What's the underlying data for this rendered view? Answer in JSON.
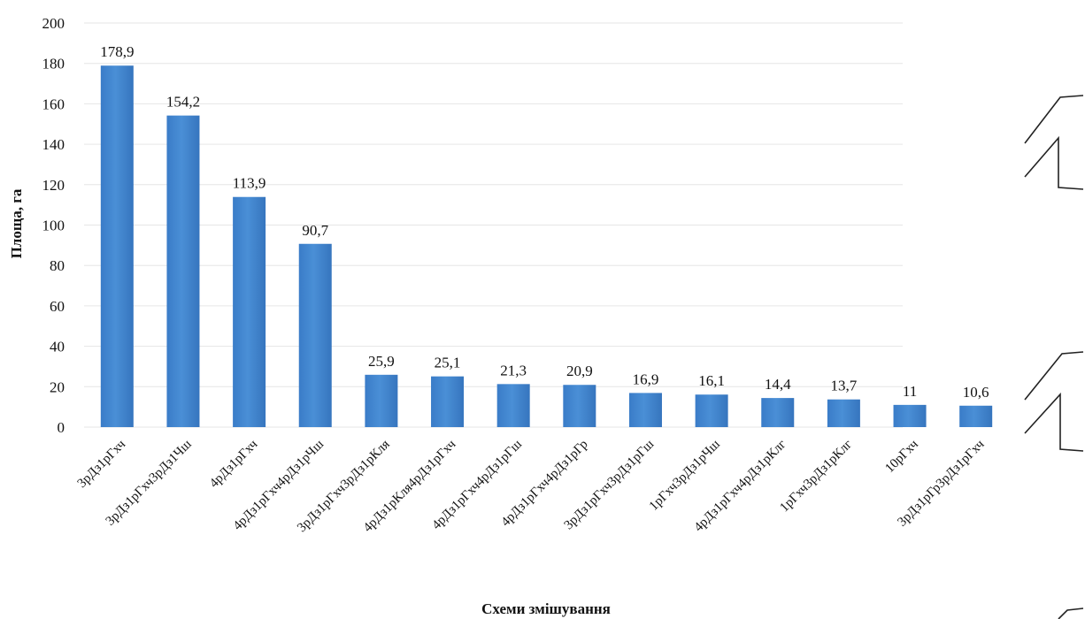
{
  "chart_data": {
    "type": "bar",
    "title": "",
    "xlabel": "Схеми змішування",
    "ylabel": "Площа, га",
    "ylim": [
      0,
      200
    ],
    "yticks": [
      0,
      20,
      40,
      60,
      80,
      100,
      120,
      140,
      160,
      180,
      200
    ],
    "grid": true,
    "legend": "none",
    "bar_color": "#4a8fd6",
    "categories": [
      "3рДз1рГхч",
      "3рДз1рГхч3рДз1Чш",
      "4рДз1рГхч",
      "4рДз1рГхч4рДз1рЧш",
      "3рДз1рГхч3рДз1рКля",
      "4рДз1рКля4рДз1рГхч",
      "4рДз1рГхч4рДз1рГш",
      "4рДз1рГхч4рДз1рГр",
      "3рДз1рГхч3рДз1рГш",
      "1рГхч3рДз1рЧш",
      "4рДз1рГхч4рДз1рКлг",
      "1рГхч3рДз1рКлг",
      "10рГхч",
      "3рДз1рГр3рДз1рГхч"
    ],
    "values": [
      178.9,
      154.2,
      113.9,
      90.7,
      25.9,
      25.1,
      21.3,
      20.9,
      16.9,
      16.1,
      14.4,
      13.7,
      11,
      10.6
    ],
    "value_labels": [
      "178,9",
      "154,2",
      "113,9",
      "90,7",
      "25,9",
      "25,1",
      "21,3",
      "20,9",
      "16,9",
      "16,1",
      "14,4",
      "13,7",
      "11",
      "10,6"
    ]
  }
}
